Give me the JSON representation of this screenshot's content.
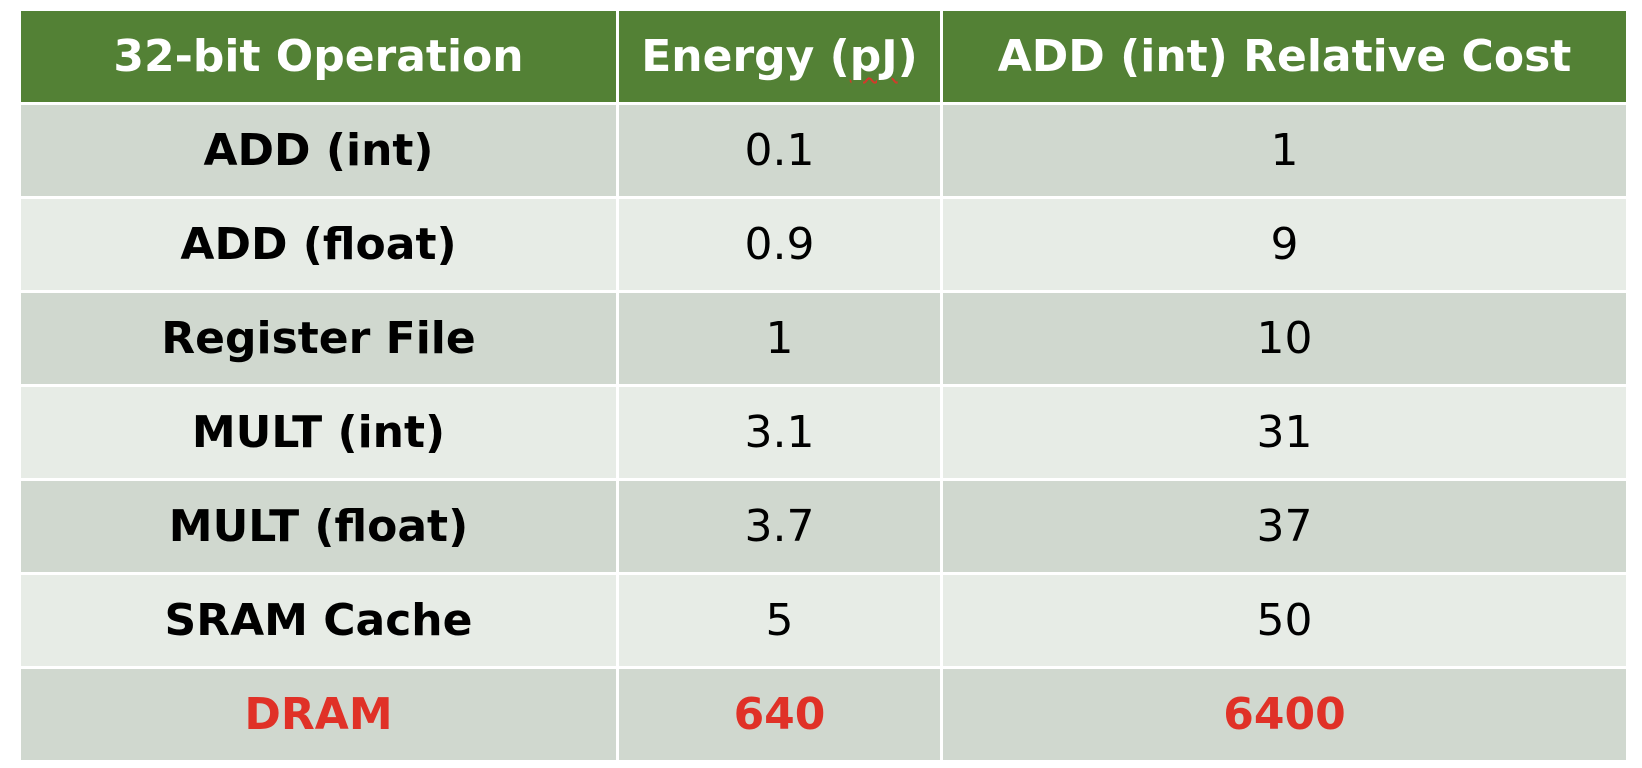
{
  "table": {
    "headers": {
      "operation": "32-bit Operation",
      "energy_prefix": "Energy (",
      "energy_unit": "pJ",
      "energy_suffix": ")",
      "relative_cost": "ADD (int) Relative Cost"
    },
    "rows": [
      {
        "operation": "ADD (int)",
        "energy": "0.1",
        "relative_cost": "1"
      },
      {
        "operation": "ADD (float)",
        "energy": "0.9",
        "relative_cost": "9"
      },
      {
        "operation": "Register File",
        "energy": "1",
        "relative_cost": "10"
      },
      {
        "operation": "MULT (int)",
        "energy": "3.1",
        "relative_cost": "31"
      },
      {
        "operation": "MULT (float)",
        "energy": "3.7",
        "relative_cost": "37"
      },
      {
        "operation": "SRAM Cache",
        "energy": "5",
        "relative_cost": "50"
      },
      {
        "operation": "DRAM",
        "energy": "640",
        "relative_cost": "6400"
      }
    ]
  },
  "colors": {
    "header_background": "#538135",
    "header_text": "#ffffff",
    "row_band_dark": "#d0d8cf",
    "row_band_light": "#e7ece6",
    "highlight_text": "#e03127"
  }
}
